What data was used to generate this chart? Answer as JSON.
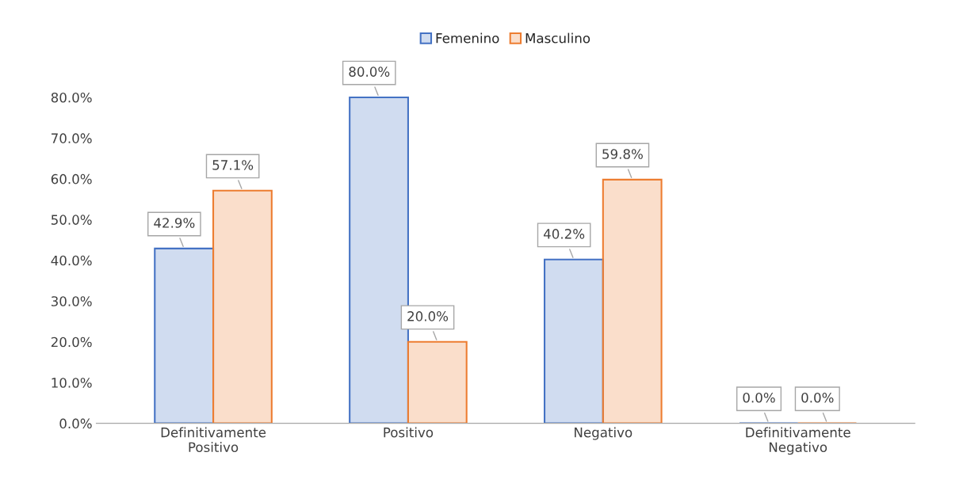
{
  "chart_data": {
    "type": "bar",
    "categories": [
      "Definitivamente\nPositivo",
      "Positivo",
      "Negativo",
      "Definitivamente\nNegativo"
    ],
    "series": [
      {
        "name": "Femenino",
        "color": "#4472c4",
        "values": [
          42.9,
          80.0,
          40.2,
          0.0
        ],
        "value_labels": [
          "42.9%",
          "80.0%",
          "40.2%",
          "0.0%"
        ]
      },
      {
        "name": "Masculino",
        "color": "#ed7d31",
        "values": [
          57.1,
          20.0,
          59.8,
          0.0
        ],
        "value_labels": [
          "57.1%",
          "20.0%",
          "59.8%",
          "0.0%"
        ]
      }
    ],
    "ylim": [
      0,
      88
    ],
    "yticks": [
      {
        "value": 0,
        "label": "0.0%"
      },
      {
        "value": 10,
        "label": "10.0%"
      },
      {
        "value": 20,
        "label": "20.0%"
      },
      {
        "value": 30,
        "label": "30.0%"
      },
      {
        "value": 40,
        "label": "40.0%"
      },
      {
        "value": 50,
        "label": "50.0%"
      },
      {
        "value": 60,
        "label": "60.0%"
      },
      {
        "value": 70,
        "label": "70.0%"
      },
      {
        "value": 80,
        "label": "80.0%"
      }
    ],
    "grid": false,
    "legend": "top"
  }
}
